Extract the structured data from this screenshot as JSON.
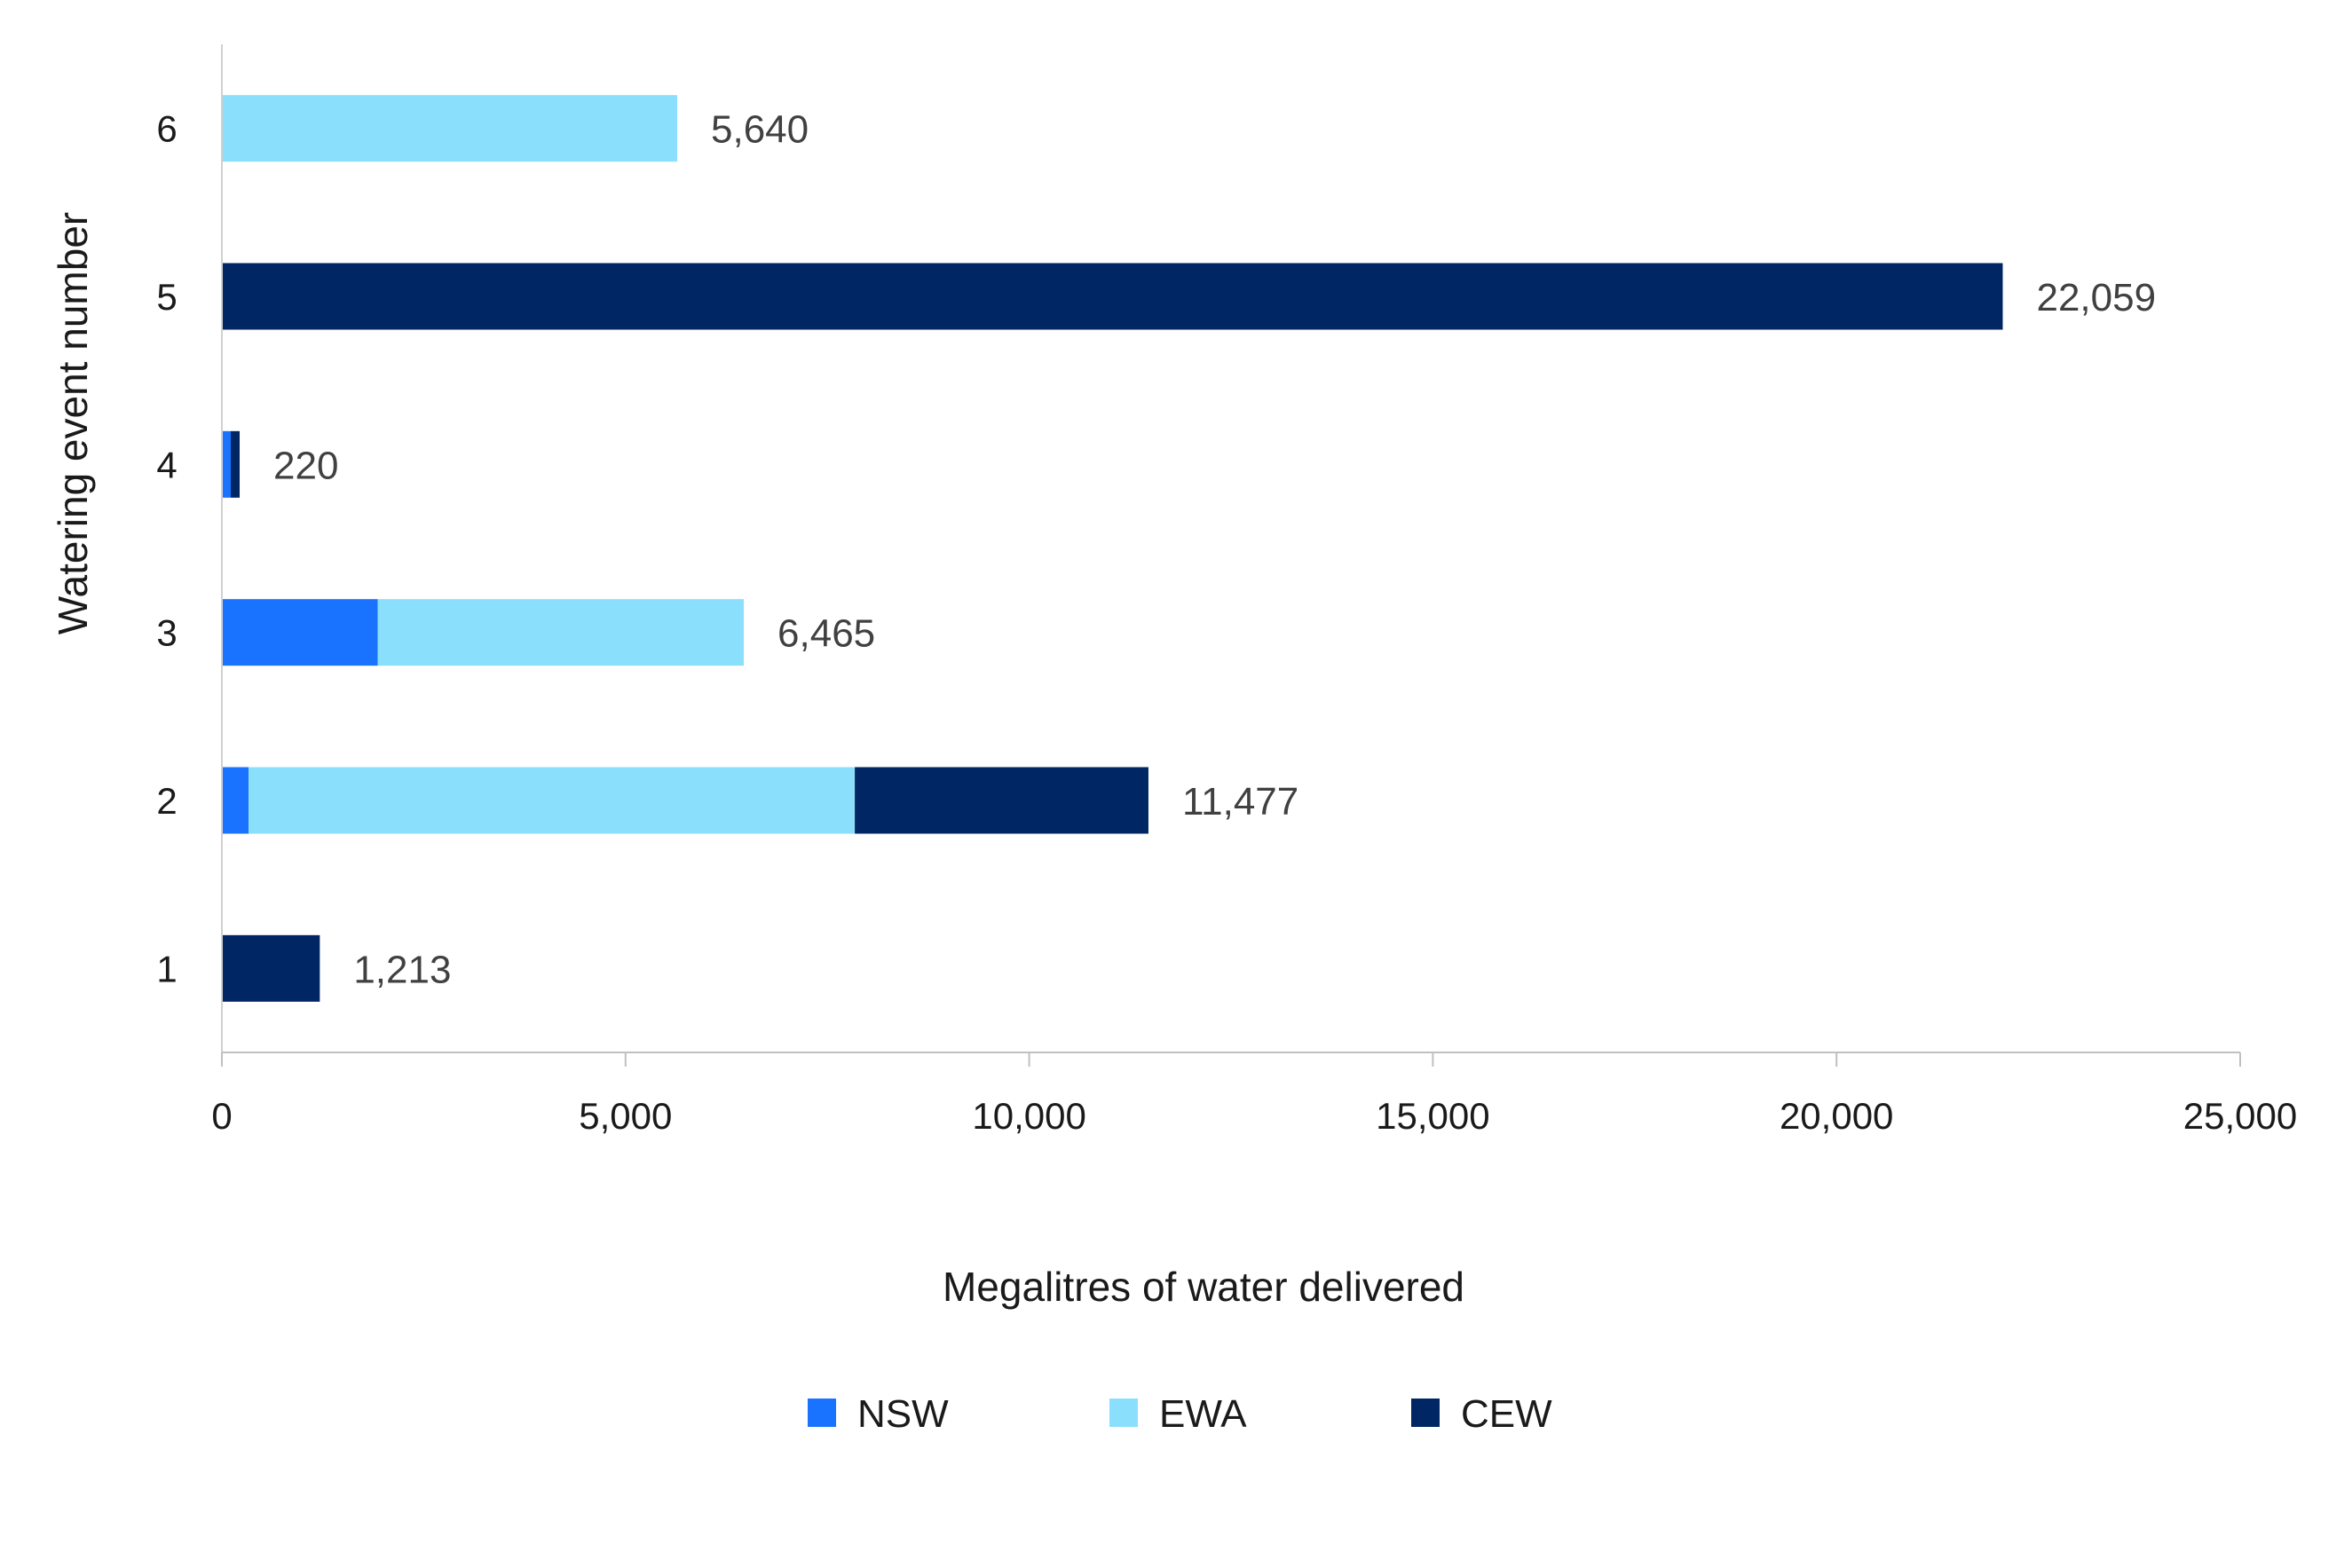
{
  "chart_data": {
    "type": "bar",
    "orientation": "horizontal",
    "stacked": true,
    "categories": [
      "1",
      "2",
      "3",
      "4",
      "5",
      "6"
    ],
    "series": [
      {
        "name": "NSW",
        "color": "#1a73ff",
        "values": [
          0,
          330,
          1930,
          110,
          0,
          0
        ]
      },
      {
        "name": "EWA",
        "color": "#8ae0fc",
        "values": [
          0,
          7510,
          4535,
          0,
          0,
          5640
        ]
      },
      {
        "name": "CEW",
        "color": "#002663",
        "values": [
          1213,
          3637,
          0,
          110,
          22059,
          0
        ]
      }
    ],
    "totals": [
      1213,
      11477,
      6465,
      220,
      22059,
      5640
    ],
    "total_labels": [
      "1,213",
      "11,477",
      "6,465",
      "220",
      "22,059",
      "5,640"
    ],
    "xlabel": "Megalitres of water delivered",
    "ylabel": "Watering event number",
    "xlim": [
      0,
      25000
    ],
    "xticks": [
      0,
      5000,
      10000,
      15000,
      20000,
      25000
    ],
    "xtick_labels": [
      "0",
      "5,000",
      "10,000",
      "15,000",
      "20,000",
      "25,000"
    ],
    "grid": false,
    "legend_position": "bottom"
  }
}
